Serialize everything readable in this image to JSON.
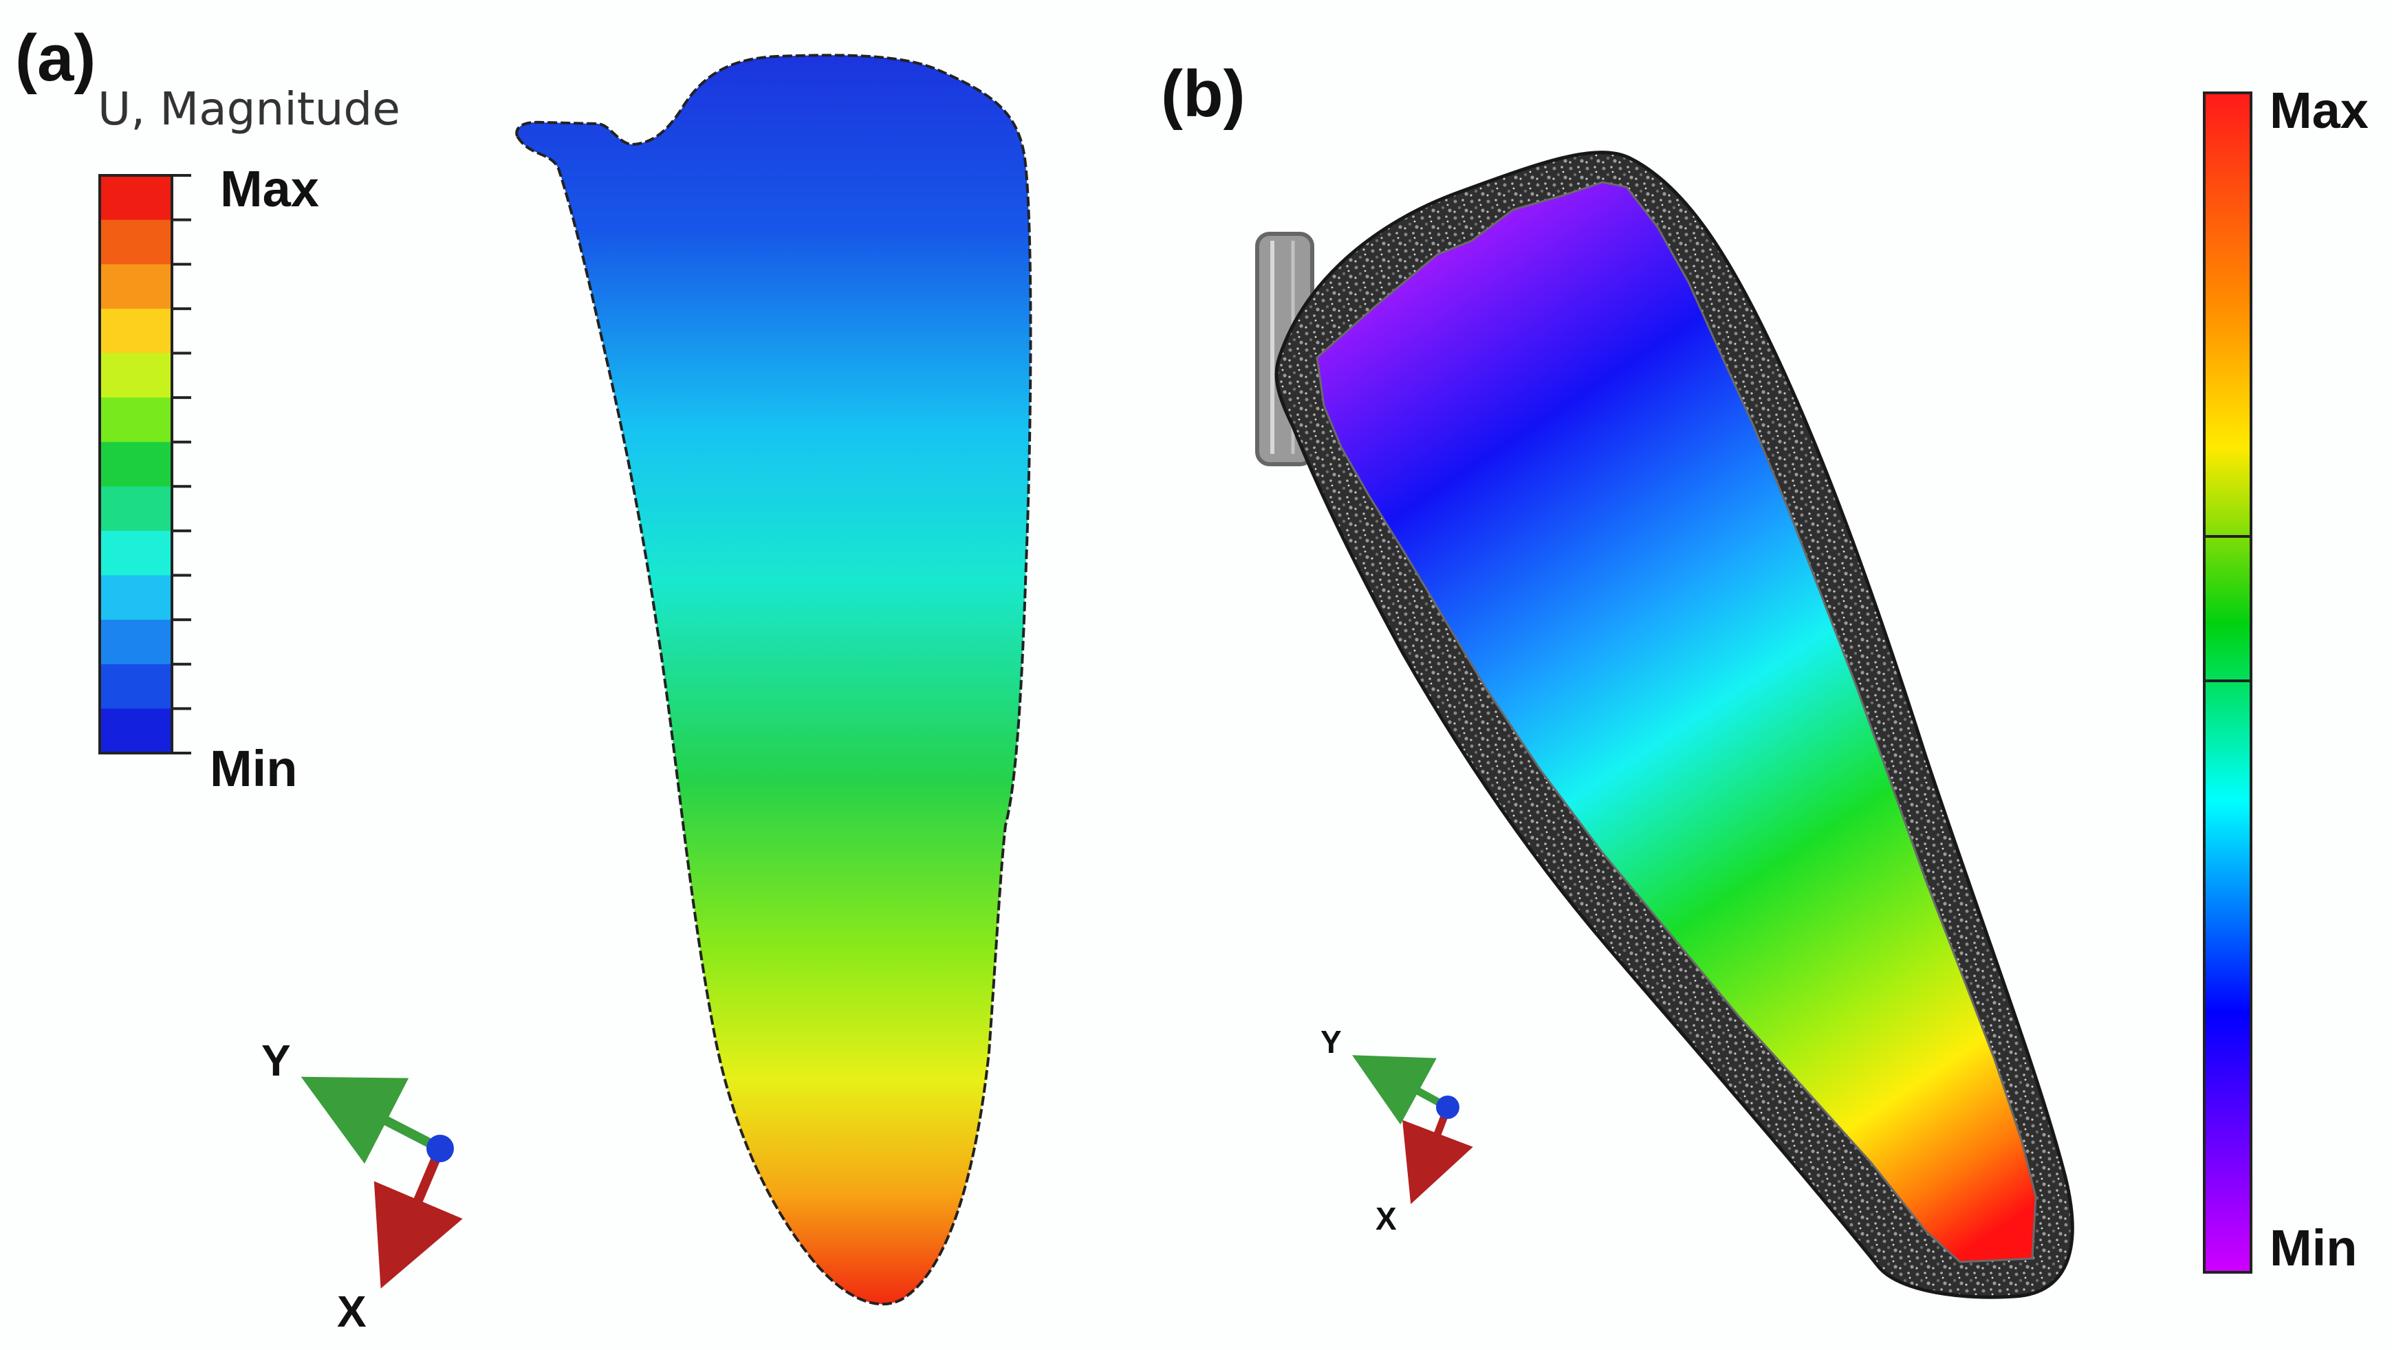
{
  "panel_a": {
    "label": "(a)",
    "legend": {
      "title": "U, Magnitude",
      "max_label": "Max",
      "min_label": "Min",
      "colors": [
        "#ef1d12",
        "#f25e13",
        "#f69719",
        "#fcd01d",
        "#c8f21d",
        "#76ea1c",
        "#1ccf3f",
        "#1ddc86",
        "#1cf0d8",
        "#1dc1f4",
        "#1c84ee",
        "#174ce6",
        "#1321de"
      ]
    },
    "axes": {
      "y_label": "Y",
      "x_label": "X"
    }
  },
  "panel_b": {
    "label": "(b)",
    "legend": {
      "max_label": "Max",
      "min_label": "Min",
      "colors": [
        "#ff1a1a",
        "#ff8c00",
        "#ffea00",
        "#00d10f",
        "#00ffff",
        "#0000ff",
        "#d000ff"
      ]
    },
    "axes": {
      "y_label": "Y",
      "x_label": "X"
    }
  },
  "colors": {
    "outline": "#222222",
    "speckle_border": "#2f2f2f",
    "axis_y_arrow": "#3a9e3a",
    "axis_x_arrow": "#b32020",
    "axis_origin": "#1c3ed8"
  },
  "icons": {
    "axis_triad_a": "xyz-triad-icon",
    "axis_triad_b": "xyz-triad-icon"
  }
}
